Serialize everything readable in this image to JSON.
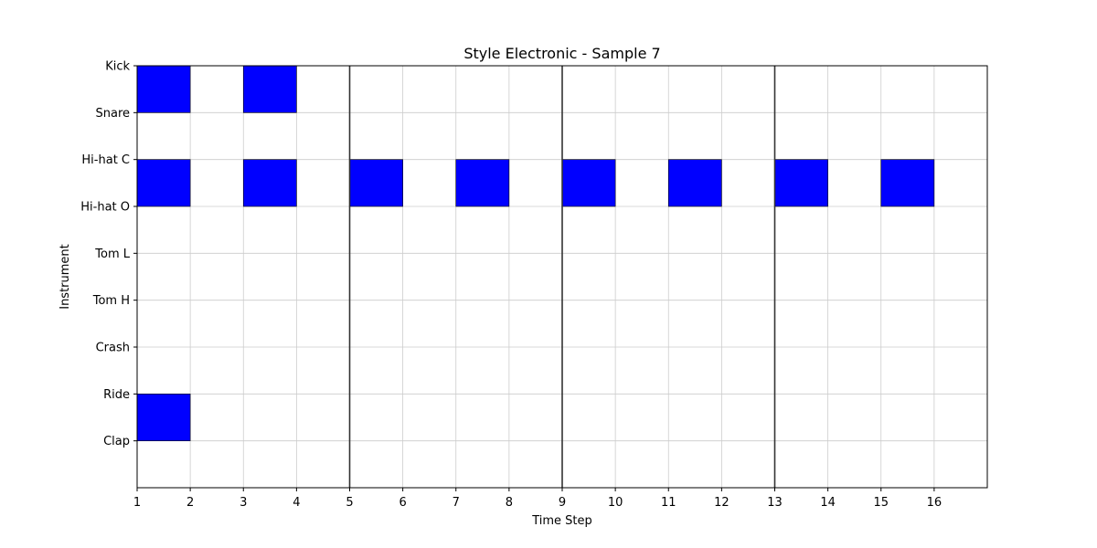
{
  "chart_data": {
    "type": "heatmap",
    "title": "Style Electronic - Sample 7",
    "xlabel": "Time Step",
    "ylabel": "Instrument",
    "instruments": [
      "Kick",
      "Snare",
      "Hi-hat C",
      "Hi-hat O",
      "Tom L",
      "Tom H",
      "Crash",
      "Ride",
      "Clap"
    ],
    "x_ticks": [
      1,
      2,
      3,
      4,
      5,
      6,
      7,
      8,
      9,
      10,
      11,
      12,
      13,
      14,
      15,
      16
    ],
    "xlim": [
      1,
      17
    ],
    "grid": true,
    "bar_lines": [
      5,
      9,
      13
    ],
    "hit_color": "#0000ff",
    "hits": [
      {
        "instrument": "Kick",
        "step": 1
      },
      {
        "instrument": "Kick",
        "step": 3
      },
      {
        "instrument": "Hi-hat C",
        "step": 1
      },
      {
        "instrument": "Hi-hat C",
        "step": 3
      },
      {
        "instrument": "Hi-hat C",
        "step": 5
      },
      {
        "instrument": "Hi-hat C",
        "step": 7
      },
      {
        "instrument": "Hi-hat C",
        "step": 9
      },
      {
        "instrument": "Hi-hat C",
        "step": 11
      },
      {
        "instrument": "Hi-hat C",
        "step": 13
      },
      {
        "instrument": "Hi-hat C",
        "step": 15
      },
      {
        "instrument": "Ride",
        "step": 1
      }
    ]
  }
}
